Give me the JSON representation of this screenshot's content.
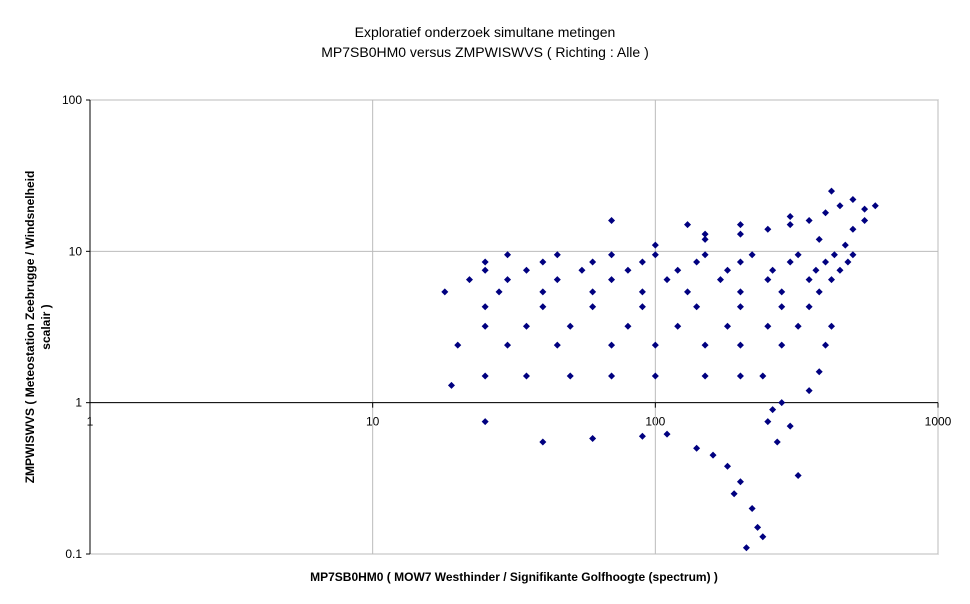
{
  "chart_data": {
    "type": "scatter",
    "title_lines": [
      "Exploratief onderzoek simultane metingen",
      "MP7SB0HM0 versus ZMPWISWVS ( Richting : Alle )"
    ],
    "xlabel": "MP7SB0HM0 ( MOW7 Westhinder / Signifikante Golfhoogte (spectrum) )",
    "ylabel_lines": [
      "ZMPWISWVS ( Meteostation Zeebrugge / Windsnelheid",
      "scalair )"
    ],
    "xscale": "log",
    "yscale": "log",
    "xlim": [
      1,
      1000
    ],
    "ylim": [
      0.1,
      100
    ],
    "xticks": [
      1,
      10,
      100,
      1000
    ],
    "yticks": [
      0.1,
      1,
      10,
      100
    ],
    "xaxis_at": 1,
    "grid": true,
    "series": [
      {
        "color": "#000080",
        "x": [
          25,
          35,
          50,
          70,
          100,
          150,
          200,
          240,
          20,
          30,
          45,
          70,
          100,
          150,
          200,
          280,
          25,
          35,
          50,
          80,
          120,
          180,
          250,
          320,
          25,
          40,
          60,
          90,
          140,
          200,
          280,
          350,
          18,
          28,
          40,
          60,
          90,
          130,
          200,
          280,
          380,
          22,
          30,
          45,
          70,
          110,
          170,
          250,
          350,
          420,
          25,
          35,
          55,
          80,
          120,
          180,
          260,
          370,
          450,
          25,
          40,
          60,
          90,
          140,
          200,
          300,
          400,
          480,
          30,
          45,
          70,
          100,
          150,
          220,
          320,
          430,
          500,
          100,
          150,
          200,
          250,
          300,
          350,
          400,
          450,
          500,
          550,
          420,
          300,
          200,
          150,
          500,
          550,
          600,
          380,
          470,
          130,
          70,
          19,
          25,
          40,
          60,
          90,
          110,
          140,
          160,
          180,
          200,
          220,
          240,
          210,
          270,
          300,
          320,
          260,
          350,
          380,
          400,
          420,
          230,
          190,
          250,
          280
        ],
        "y": [
          1.5,
          1.5,
          1.5,
          1.5,
          1.5,
          1.5,
          1.5,
          1.5,
          2.4,
          2.4,
          2.4,
          2.4,
          2.4,
          2.4,
          2.4,
          2.4,
          3.2,
          3.2,
          3.2,
          3.2,
          3.2,
          3.2,
          3.2,
          3.2,
          4.3,
          4.3,
          4.3,
          4.3,
          4.3,
          4.3,
          4.3,
          4.3,
          5.4,
          5.4,
          5.4,
          5.4,
          5.4,
          5.4,
          5.4,
          5.4,
          5.4,
          6.5,
          6.5,
          6.5,
          6.5,
          6.5,
          6.5,
          6.5,
          6.5,
          6.5,
          7.5,
          7.5,
          7.5,
          7.5,
          7.5,
          7.5,
          7.5,
          7.5,
          7.5,
          8.5,
          8.5,
          8.5,
          8.5,
          8.5,
          8.5,
          8.5,
          8.5,
          8.5,
          9.5,
          9.5,
          9.5,
          9.5,
          9.5,
          9.5,
          9.5,
          9.5,
          9.5,
          11,
          12,
          13,
          14,
          15,
          16,
          18,
          20,
          22,
          19,
          25,
          17,
          15,
          13,
          14,
          16,
          20,
          12,
          11,
          15,
          16,
          1.3,
          0.75,
          0.55,
          0.58,
          0.6,
          0.62,
          0.5,
          0.45,
          0.38,
          0.3,
          0.2,
          0.13,
          0.11,
          0.55,
          0.7,
          0.33,
          0.9,
          1.2,
          1.6,
          2.4,
          3.2,
          0.15,
          0.25,
          0.75,
          1.0
        ]
      }
    ]
  }
}
